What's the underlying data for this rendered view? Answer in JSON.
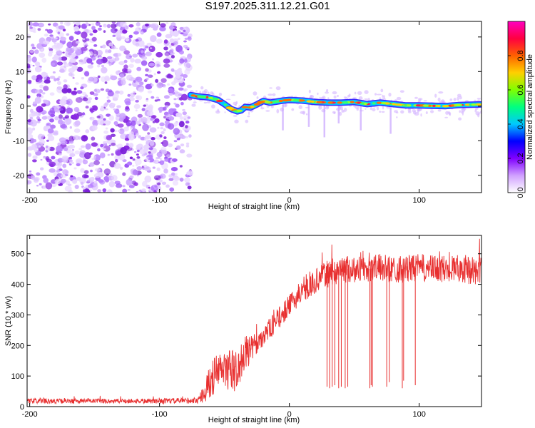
{
  "title": "S197.2025.311.12.21.G01",
  "chart_data": [
    {
      "type": "heatmap",
      "xlabel": "Height of straight line (km)",
      "ylabel": "Frequency (Hz)",
      "xlim": [
        -202,
        148
      ],
      "ylim": [
        -25,
        24.5
      ],
      "xticks": [
        -200,
        -100,
        0,
        100
      ],
      "xtick_labels": [
        "-200",
        "-100",
        "0",
        "100"
      ],
      "yticks": [
        -20,
        -10,
        0,
        10,
        20
      ],
      "ytick_labels": [
        "-20",
        "-10",
        "0",
        "10",
        "20"
      ],
      "noise_region_x": [
        -202,
        -76
      ],
      "ridge": {
        "x": [
          -76,
          -70,
          -62,
          -55,
          -50,
          -45,
          -40,
          -37,
          -34,
          -30,
          -25,
          -20,
          -15,
          -10,
          -5,
          0,
          10,
          20,
          30,
          40,
          50,
          60,
          70,
          80,
          90,
          100,
          110,
          120,
          130,
          148
        ],
        "freq": [
          3.2,
          2.8,
          2.5,
          1.8,
          0.6,
          -0.8,
          -1.5,
          -1.2,
          -0.2,
          -0.4,
          0.5,
          1.5,
          1.0,
          1.3,
          1.6,
          1.8,
          1.6,
          1.2,
          1.0,
          1.0,
          1.2,
          0.6,
          1.0,
          0.6,
          0.2,
          0.2,
          0.1,
          0.0,
          0.3,
          0.5
        ]
      },
      "colorbar": {
        "label": "Normalized spectral amplitude",
        "range": [
          0,
          1
        ],
        "ticks": [
          0.0,
          0.2,
          0.4,
          0.6,
          0.8
        ],
        "tick_labels": [
          "0.0",
          "0.2",
          "0.4",
          "0.6",
          "0.8"
        ],
        "colors": [
          "#ffffff",
          "#d0a0ff",
          "#8000ff",
          "#0000ff",
          "#00c8ff",
          "#00ff80",
          "#80ff00",
          "#ffd000",
          "#ff6000",
          "#ff0040",
          "#ff00c0"
        ]
      }
    },
    {
      "type": "line",
      "xlabel": "Height of straight line (km)",
      "ylabel": "SNR (10 * v/v)",
      "xlim": [
        -202,
        148
      ],
      "ylim": [
        0,
        560
      ],
      "xticks": [
        -200,
        -100,
        0,
        100
      ],
      "xtick_labels": [
        "-200",
        "-100",
        "0",
        "100"
      ],
      "yticks": [
        0,
        100,
        200,
        300,
        400,
        500
      ],
      "ytick_labels": [
        "0",
        "100",
        "200",
        "300",
        "400",
        "500"
      ],
      "color": "#e83030",
      "envelope": {
        "x": [
          -202,
          -100,
          -70,
          -65,
          -60,
          -55,
          -50,
          -45,
          -40,
          -35,
          -30,
          -25,
          -20,
          -15,
          -10,
          -5,
          0,
          5,
          10,
          15,
          20,
          25,
          30,
          40,
          50,
          60,
          70,
          80,
          90,
          100,
          110,
          120,
          130,
          148
        ],
        "mean": [
          18,
          18,
          20,
          50,
          90,
          115,
          120,
          120,
          110,
          170,
          185,
          205,
          235,
          255,
          280,
          305,
          330,
          355,
          370,
          390,
          410,
          425,
          435,
          450,
          450,
          450,
          455,
          450,
          450,
          455,
          450,
          450,
          455,
          440
        ],
        "spread": [
          8,
          8,
          10,
          35,
          60,
          65,
          60,
          70,
          70,
          60,
          45,
          40,
          35,
          35,
          35,
          35,
          35,
          35,
          35,
          35,
          40,
          40,
          45,
          45,
          45,
          45,
          45,
          45,
          45,
          45,
          45,
          45,
          45,
          50
        ]
      },
      "dips": [
        {
          "x": 29,
          "value": 65
        },
        {
          "x": 31,
          "value": 60
        },
        {
          "x": 33,
          "value": 65
        },
        {
          "x": 35,
          "value": 70
        },
        {
          "x": 38,
          "value": 60
        },
        {
          "x": 40,
          "value": 65
        },
        {
          "x": 43,
          "value": 60
        },
        {
          "x": 45,
          "value": 65
        },
        {
          "x": 62,
          "value": 60
        },
        {
          "x": 63,
          "value": 70
        },
        {
          "x": 64,
          "value": 65
        },
        {
          "x": 75,
          "value": 65
        },
        {
          "x": 77,
          "value": 80
        },
        {
          "x": 87,
          "value": 60
        },
        {
          "x": 88,
          "value": 85
        },
        {
          "x": 97,
          "value": 70
        }
      ]
    }
  ]
}
